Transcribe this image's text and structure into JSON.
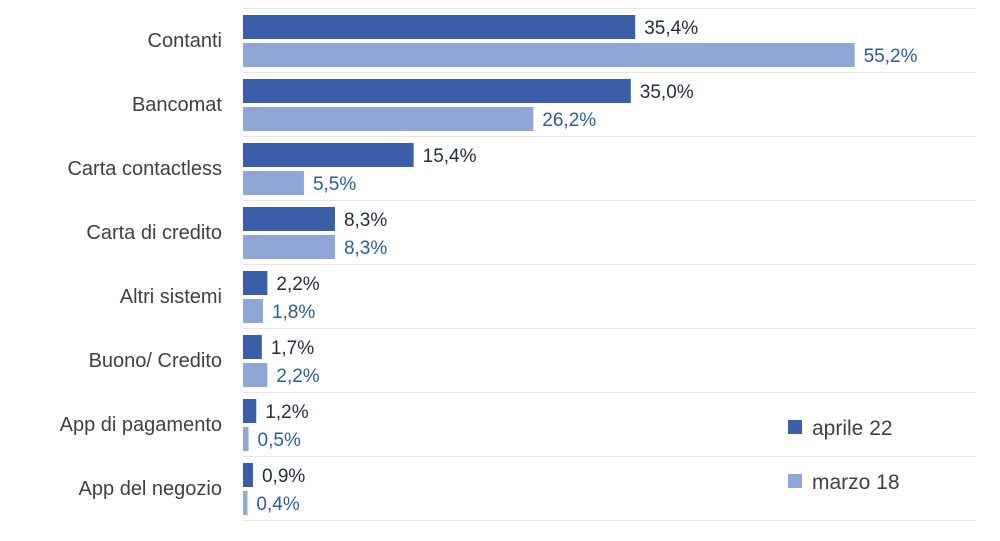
{
  "chart_data": {
    "type": "bar",
    "orientation": "horizontal",
    "categories": [
      "Contanti",
      "Bancomat",
      "Carta contactless",
      "Carta di credito",
      "Altri sistemi",
      "Buono/ Credito",
      "App di pagamento",
      "App del negozio"
    ],
    "series": [
      {
        "name": "aprile 22",
        "color": "#3a5ea8",
        "values": [
          35.4,
          35.0,
          15.4,
          8.3,
          2.2,
          1.7,
          1.2,
          0.9
        ],
        "labels": [
          "35,4%",
          "35,0%",
          "15,4%",
          "8,3%",
          "2,2%",
          "1,7%",
          "1,2%",
          "0,9%"
        ]
      },
      {
        "name": "marzo 18",
        "color": "#8fa6d6",
        "values": [
          55.2,
          26.2,
          5.5,
          8.3,
          1.8,
          2.2,
          0.5,
          0.4
        ],
        "labels": [
          "55,2%",
          "26,2%",
          "5,5%",
          "8,3%",
          "1,8%",
          "2,2%",
          "0,5%",
          "0,4%"
        ]
      }
    ],
    "xlim": [
      0,
      100
    ],
    "legend_position": "bottom-right",
    "grid": true
  }
}
